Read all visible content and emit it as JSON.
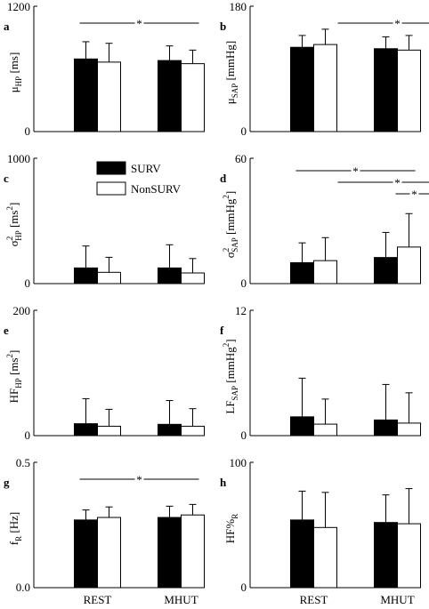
{
  "legend": [
    {
      "label": "SURV",
      "color": "#000000"
    },
    {
      "label": "NonSURV",
      "color": "#ffffff"
    }
  ],
  "categories": [
    "REST",
    "MHUT"
  ],
  "chart_data": [
    {
      "type": "bar",
      "panel": "a",
      "ylabel": {
        "main": "μ",
        "sub": "HP",
        "sup": "",
        "unit_pre": " [ms",
        "unit_sup": "",
        "unit_post": "]"
      },
      "ylim": [
        0,
        1200
      ],
      "yticks": [
        "0",
        "1200"
      ],
      "categories": [
        "REST",
        "MHUT"
      ],
      "series": [
        {
          "name": "SURV",
          "values": [
            695,
            680
          ],
          "errors": [
            165,
            140
          ]
        },
        {
          "name": "NonSURV",
          "values": [
            665,
            650
          ],
          "errors": [
            180,
            130
          ]
        }
      ],
      "significance": [
        {
          "from": 0,
          "to": 1,
          "label": "*"
        }
      ]
    },
    {
      "type": "bar",
      "panel": "b",
      "ylabel": {
        "main": "μ",
        "sub": "SAP",
        "sup": "",
        "unit_pre": " [mmHg",
        "unit_sup": "",
        "unit_post": "]"
      },
      "ylim": [
        0,
        180
      ],
      "yticks": [
        "0",
        "180"
      ],
      "categories": [
        "REST",
        "MHUT"
      ],
      "series": [
        {
          "name": "SURV",
          "values": [
            121,
            119
          ],
          "errors": [
            17,
            17
          ]
        },
        {
          "name": "NonSURV",
          "values": [
            125,
            117
          ],
          "errors": [
            22,
            21
          ]
        }
      ],
      "significance": [
        {
          "from": 0.5,
          "to": 1.5,
          "label": "*"
        }
      ]
    },
    {
      "type": "bar",
      "panel": "c",
      "ylabel": {
        "main": "σ",
        "sub": "HP",
        "sup": "2",
        "unit_pre": " [ms",
        "unit_sup": "2",
        "unit_post": "]"
      },
      "ylim": [
        0,
        1000
      ],
      "yticks": [
        "0",
        "1000"
      ],
      "categories": [
        "REST",
        "MHUT"
      ],
      "series": [
        {
          "name": "SURV",
          "values": [
            125,
            125
          ],
          "errors": [
            175,
            185
          ]
        },
        {
          "name": "NonSURV",
          "values": [
            90,
            85
          ],
          "errors": [
            120,
            115
          ]
        }
      ],
      "significance": []
    },
    {
      "type": "bar",
      "panel": "d",
      "ylabel": {
        "main": "σ",
        "sub": "SAP",
        "sup": "2",
        "unit_pre": " [mmHg",
        "unit_sup": "2",
        "unit_post": "]"
      },
      "ylim": [
        0,
        60
      ],
      "yticks": [
        "0",
        "60"
      ],
      "categories": [
        "REST",
        "MHUT"
      ],
      "series": [
        {
          "name": "SURV",
          "values": [
            10,
            12.5
          ],
          "errors": [
            9.5,
            12
          ]
        },
        {
          "name": "NonSURV",
          "values": [
            11,
            17.5
          ],
          "errors": [
            11,
            16
          ]
        }
      ],
      "significance": [
        {
          "from": 0,
          "to": 1,
          "label": "*"
        },
        {
          "from": 0.5,
          "to": 1.5,
          "label": "*"
        },
        {
          "from": 1,
          "to": 1.5,
          "label": "*"
        }
      ]
    },
    {
      "type": "bar",
      "panel": "e",
      "ylabel": {
        "main": "HF",
        "sub": "HP",
        "sup": "",
        "unit_pre": " [ms",
        "unit_sup": "2",
        "unit_post": "]"
      },
      "ylim": [
        0,
        200
      ],
      "yticks": [
        "0",
        "200"
      ],
      "categories": [
        "REST",
        "MHUT"
      ],
      "series": [
        {
          "name": "SURV",
          "values": [
            19,
            18
          ],
          "errors": [
            40,
            38
          ]
        },
        {
          "name": "NonSURV",
          "values": [
            15,
            15
          ],
          "errors": [
            27,
            28
          ]
        }
      ],
      "significance": []
    },
    {
      "type": "bar",
      "panel": "f",
      "ylabel": {
        "main": "LF",
        "sub": "SAP",
        "sup": "",
        "unit_pre": " [mmHg",
        "unit_sup": "2",
        "unit_post": "]"
      },
      "ylim": [
        0,
        12
      ],
      "yticks": [
        "0",
        "12"
      ],
      "categories": [
        "REST",
        "MHUT"
      ],
      "series": [
        {
          "name": "SURV",
          "values": [
            1.8,
            1.5
          ],
          "errors": [
            3.7,
            3.4
          ]
        },
        {
          "name": "NonSURV",
          "values": [
            1.1,
            1.2
          ],
          "errors": [
            2.4,
            2.9
          ]
        }
      ],
      "significance": []
    },
    {
      "type": "bar",
      "panel": "g",
      "ylabel": {
        "main": "f",
        "sub": "R",
        "sup": "",
        "unit_pre": " [Hz",
        "unit_sup": "",
        "unit_post": "]"
      },
      "ylim": [
        0,
        0.5
      ],
      "yticks": [
        "0.0",
        "0.5"
      ],
      "categories": [
        "REST",
        "MHUT"
      ],
      "series": [
        {
          "name": "SURV",
          "values": [
            0.27,
            0.28
          ],
          "errors": [
            0.04,
            0.045
          ]
        },
        {
          "name": "NonSURV",
          "values": [
            0.28,
            0.29
          ],
          "errors": [
            0.042,
            0.042
          ]
        }
      ],
      "significance": [
        {
          "from": 0,
          "to": 1,
          "label": "*"
        }
      ]
    },
    {
      "type": "bar",
      "panel": "h",
      "ylabel": {
        "main": "HF%",
        "sub": "R",
        "sup": "",
        "unit_pre": "",
        "unit_sup": "",
        "unit_post": ""
      },
      "ylim": [
        0,
        100
      ],
      "yticks": [
        "0",
        "100"
      ],
      "categories": [
        "REST",
        "MHUT"
      ],
      "series": [
        {
          "name": "SURV",
          "values": [
            54,
            52
          ],
          "errors": [
            23,
            22
          ]
        },
        {
          "name": "NonSURV",
          "values": [
            48,
            51
          ],
          "errors": [
            28,
            28
          ]
        }
      ],
      "significance": []
    }
  ]
}
